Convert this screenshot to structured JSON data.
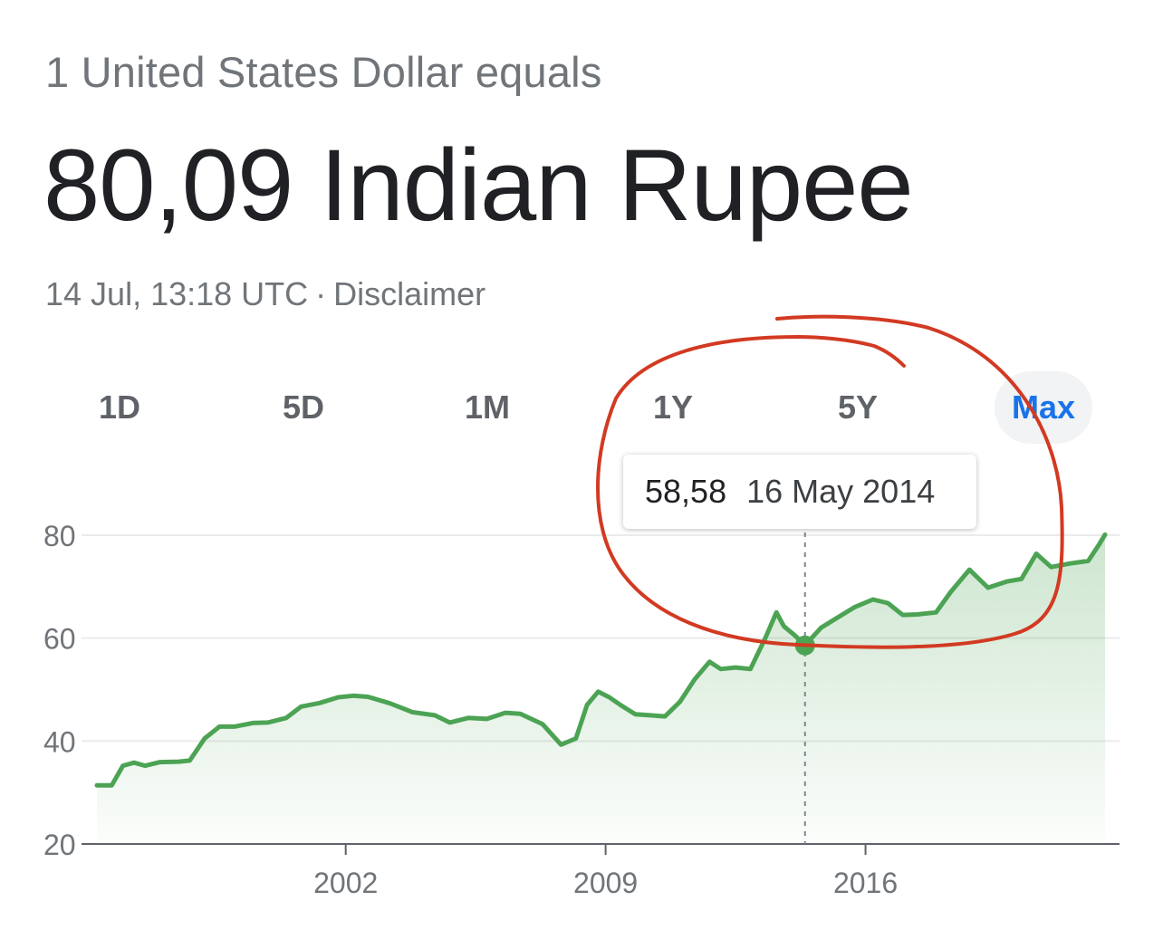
{
  "header": {
    "subtitle": "1 United States Dollar equals",
    "main_value": "80,09 Indian Rupee",
    "timestamp": "14 Jul, 13:18 UTC",
    "separator": "·",
    "disclaimer": "Disclaimer"
  },
  "range_tabs": [
    {
      "label": "1D",
      "active": false
    },
    {
      "label": "5D",
      "active": false
    },
    {
      "label": "1M",
      "active": false
    },
    {
      "label": "1Y",
      "active": false
    },
    {
      "label": "5Y",
      "active": false
    },
    {
      "label": "Max",
      "active": true
    }
  ],
  "tooltip": {
    "value": "58,58",
    "date": "16 May 2014"
  },
  "colors": {
    "line": "#4ca354",
    "accent": "#1a73e8",
    "annotation": "#d23a22",
    "grid": "#ebebeb"
  },
  "chart_data": {
    "type": "area",
    "title": "",
    "xlabel": "",
    "ylabel": "",
    "xlim": [
      1995.25,
      2022.5
    ],
    "ylim": [
      20,
      85
    ],
    "x_ticks": [
      2002,
      2009,
      2016
    ],
    "y_ticks": [
      20,
      40,
      60,
      80
    ],
    "grid": "horizontal",
    "highlight": {
      "x": 2014.37,
      "y": 58.58
    },
    "series": [
      {
        "x": [
          1995.3,
          1995.7,
          1996.0,
          1996.3,
          1996.6,
          1997.0,
          1997.5,
          1997.8,
          1998.2,
          1998.6,
          1999.0,
          1999.5,
          1999.9,
          2000.4,
          2000.8,
          2001.3,
          2001.8,
          2002.2,
          2002.6,
          2003.2,
          2003.8,
          2004.4,
          2004.8,
          2005.3,
          2005.8,
          2006.3,
          2006.7,
          2007.3,
          2007.8,
          2008.2,
          2008.5,
          2008.8,
          2009.1,
          2009.4,
          2009.8,
          2010.2,
          2010.6,
          2011.0,
          2011.4,
          2011.8,
          2012.1,
          2012.5,
          2012.9,
          2013.3,
          2013.6,
          2013.8,
          2014.1,
          2014.37,
          2014.8,
          2015.2,
          2015.7,
          2016.2,
          2016.6,
          2017.0,
          2017.4,
          2017.9,
          2018.3,
          2018.8,
          2019.3,
          2019.8,
          2020.2,
          2020.6,
          2021.0,
          2021.5,
          2022.0,
          2022.3,
          2022.45
        ],
        "y": [
          31.4,
          31.4,
          35.2,
          35.8,
          35.2,
          35.9,
          36.0,
          36.2,
          40.5,
          42.8,
          42.8,
          43.5,
          43.6,
          44.5,
          46.7,
          47.4,
          48.5,
          48.8,
          48.6,
          47.3,
          45.6,
          45.0,
          43.6,
          44.5,
          44.3,
          45.5,
          45.3,
          43.3,
          39.3,
          40.5,
          47.0,
          49.6,
          48.5,
          47.0,
          45.2,
          45.0,
          44.8,
          47.6,
          52.0,
          55.4,
          54.0,
          54.3,
          54.0,
          60.0,
          65.0,
          62.3,
          60.5,
          58.58,
          62.0,
          63.8,
          66.0,
          67.5,
          66.8,
          64.5,
          64.6,
          65.0,
          69.0,
          73.3,
          69.8,
          71.0,
          71.5,
          76.4,
          73.8,
          74.5,
          75.0,
          78.3,
          80.1
        ]
      }
    ]
  }
}
